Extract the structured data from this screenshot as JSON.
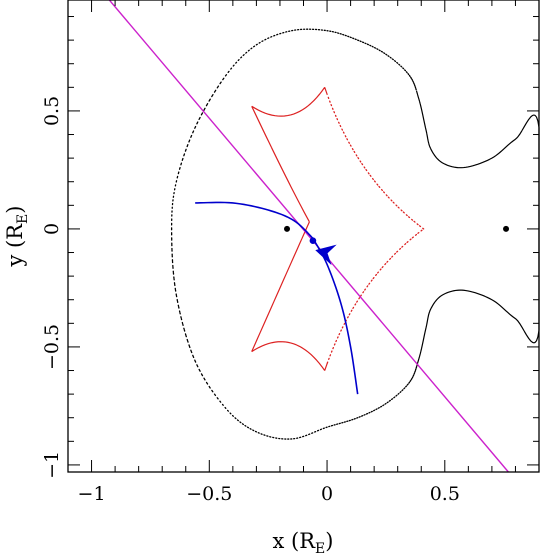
{
  "chart_data": {
    "type": "line",
    "title": "",
    "xlabel": {
      "text": "x (R",
      "sub": "E",
      "close": ")"
    },
    "ylabel": {
      "text": "y (R",
      "sub": "E",
      "close": ")"
    },
    "xlim": [
      -1.1,
      0.9
    ],
    "ylim": [
      -1.03,
      0.97
    ],
    "x_ticks": [
      {
        "v": -1,
        "label": "−1"
      },
      {
        "v": -0.5,
        "label": "−0.5"
      },
      {
        "v": 0,
        "label": "0"
      },
      {
        "v": 0.5,
        "label": "0.5"
      }
    ],
    "y_ticks": [
      {
        "v": -1,
        "label": "−1"
      },
      {
        "v": -0.5,
        "label": "−0.5"
      },
      {
        "v": 0,
        "label": "0"
      },
      {
        "v": 0.5,
        "label": "0.5"
      }
    ],
    "minor_tick_step": 0.1,
    "grid": false,
    "colors": {
      "caustic": "#dd2222",
      "critical_curve": "#000000",
      "source_trajectory": "#cc22cc",
      "image_track": "#0000cc",
      "lens": "#000000"
    },
    "lens_masses": [
      {
        "x": -0.17,
        "y": 0.0
      },
      {
        "x": 0.76,
        "y": 0.0
      }
    ],
    "source_trajectory": {
      "from": [
        -0.95,
        1.0
      ],
      "to": [
        0.77,
        -1.03
      ]
    },
    "caustic": {
      "cusps": [
        [
          0.41,
          0.0
        ],
        [
          -0.01,
          0.6
        ],
        [
          -0.32,
          0.52
        ],
        [
          -0.075,
          0.03
        ],
        [
          -0.32,
          -0.52
        ],
        [
          -0.01,
          -0.6
        ]
      ],
      "bold_x_max": 0.0
    },
    "critical_curve": {
      "outer_loop": [
        [
          -0.66,
          0.0
        ],
        [
          -0.64,
          0.2
        ],
        [
          -0.56,
          0.43
        ],
        [
          -0.43,
          0.65
        ],
        [
          -0.3,
          0.78
        ],
        [
          -0.15,
          0.84
        ],
        [
          0.0,
          0.84
        ],
        [
          0.13,
          0.8
        ],
        [
          0.25,
          0.74
        ],
        [
          0.35,
          0.65
        ],
        [
          0.39,
          0.55
        ],
        [
          0.42,
          0.42
        ],
        [
          0.44,
          0.34
        ],
        [
          0.49,
          0.28
        ],
        [
          0.58,
          0.26
        ],
        [
          0.7,
          0.3
        ],
        [
          0.8,
          0.38
        ],
        [
          0.9,
          0.43
        ],
        [
          0.9,
          -0.43
        ],
        [
          0.8,
          -0.38
        ],
        [
          0.7,
          -0.3
        ],
        [
          0.58,
          -0.26
        ],
        [
          0.49,
          -0.28
        ],
        [
          0.44,
          -0.34
        ],
        [
          0.42,
          -0.42
        ],
        [
          0.39,
          -0.55
        ],
        [
          0.35,
          -0.65
        ],
        [
          0.25,
          -0.74
        ],
        [
          0.13,
          -0.8
        ],
        [
          0.0,
          -0.84
        ],
        [
          -0.15,
          -0.89
        ],
        [
          -0.3,
          -0.86
        ],
        [
          -0.43,
          -0.76
        ],
        [
          -0.56,
          -0.56
        ],
        [
          -0.64,
          -0.28
        ]
      ],
      "bold_x_min": 0.38
    },
    "image_track": {
      "left_arc": [
        [
          -0.56,
          0.11
        ],
        [
          -0.4,
          0.11
        ],
        [
          -0.25,
          0.08
        ],
        [
          -0.14,
          0.035
        ],
        [
          -0.06,
          -0.04
        ]
      ],
      "right_arc": [
        [
          -0.06,
          -0.04
        ],
        [
          0.0,
          -0.15
        ],
        [
          0.06,
          -0.32
        ],
        [
          0.1,
          -0.5
        ],
        [
          0.13,
          -0.7
        ]
      ],
      "point": [
        -0.06,
        -0.05
      ],
      "arrow_tip": [
        -0.05,
        -0.09
      ],
      "arrow_base": [
        0.03,
        -0.11
      ],
      "arrow_half_width": 0.045
    }
  }
}
